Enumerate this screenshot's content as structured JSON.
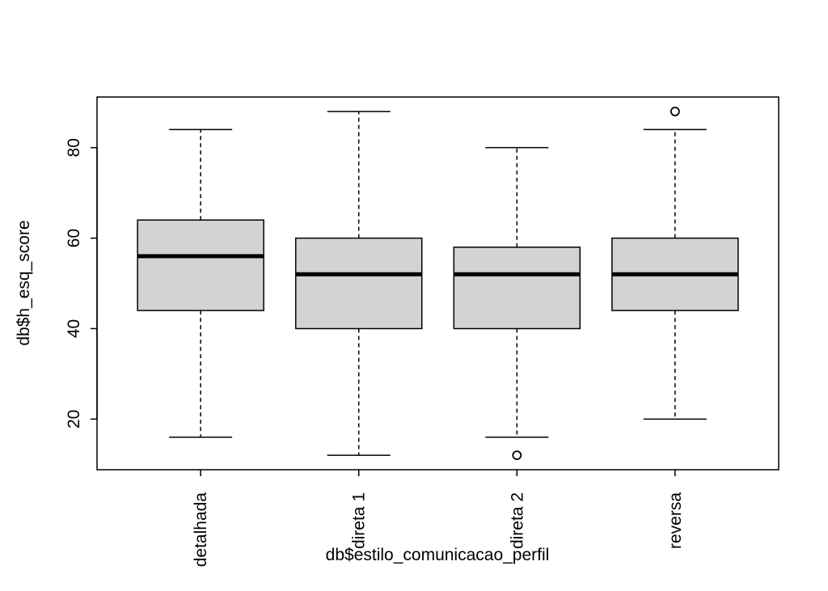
{
  "chart_data": {
    "type": "boxplot",
    "xlabel": "db$estilo_comunicacao_perfil",
    "ylabel": "db$h_esq_score",
    "ylim": [
      8.8,
      91.2
    ],
    "yticks": [
      20,
      40,
      60,
      80
    ],
    "ytick_labels": [
      "20",
      "40",
      "60",
      "80"
    ],
    "grid": false,
    "legend": "none",
    "box_fill": "#d3d3d3",
    "categories": [
      "detalhada",
      "direta 1",
      "direta 2",
      "reversa"
    ],
    "boxes": [
      {
        "name": "detalhada",
        "whisker_low": 16,
        "q1": 44,
        "median": 56,
        "q3": 64,
        "whisker_high": 84,
        "outliers": []
      },
      {
        "name": "direta 1",
        "whisker_low": 12,
        "q1": 40,
        "median": 52,
        "q3": 60,
        "whisker_high": 88,
        "outliers": []
      },
      {
        "name": "direta 2",
        "whisker_low": 16,
        "q1": 40,
        "median": 52,
        "q3": 58,
        "whisker_high": 80,
        "outliers": [
          12
        ]
      },
      {
        "name": "reversa",
        "whisker_low": 20,
        "q1": 44,
        "median": 52,
        "q3": 60,
        "whisker_high": 84,
        "outliers": [
          88
        ]
      }
    ]
  }
}
